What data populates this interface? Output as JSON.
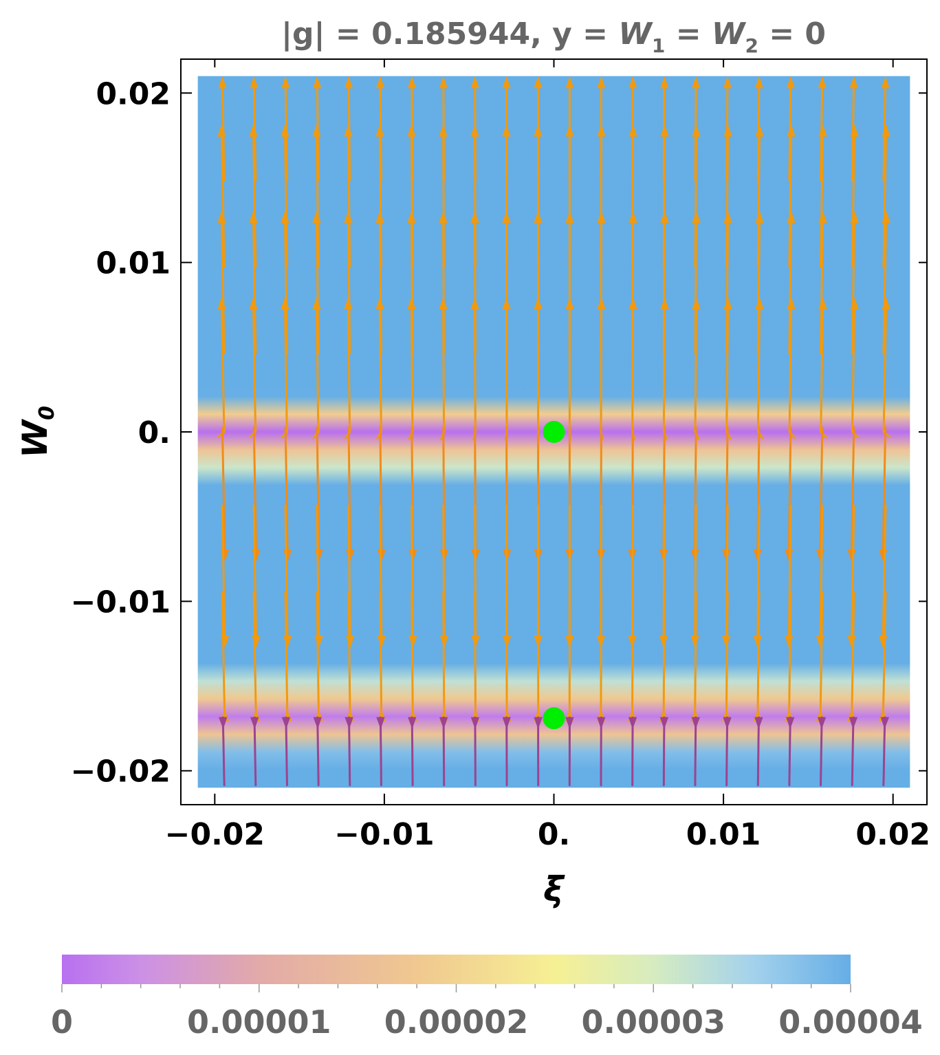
{
  "chart_data": {
    "type": "streamplot",
    "title": {
      "prefix": "|g| = 0.185944, y = ",
      "w1_letter": "W",
      "w1_sub": "1",
      "mid": " = ",
      "w2_letter": "W",
      "w2_sub": "2",
      "suffix": " = 0"
    },
    "xlabel": "ξ",
    "ylabel": {
      "letter": "W",
      "sub": "0"
    },
    "xlim": [
      -0.022,
      0.022
    ],
    "ylim": [
      -0.022,
      0.022
    ],
    "plot_range": {
      "x": [
        -0.021,
        0.021
      ],
      "y": [
        -0.021,
        0.021
      ]
    },
    "x_ticks": [
      {
        "value": -0.02,
        "label": "−0.02"
      },
      {
        "value": -0.01,
        "label": "−0.01"
      },
      {
        "value": 0,
        "label": "0."
      },
      {
        "value": 0.01,
        "label": "0.01"
      },
      {
        "value": 0.02,
        "label": "0.02"
      }
    ],
    "y_ticks": [
      {
        "value": 0.02,
        "label": "0.02"
      },
      {
        "value": 0.01,
        "label": "0.01"
      },
      {
        "value": 0,
        "label": "0."
      },
      {
        "value": -0.01,
        "label": "−0.01"
      },
      {
        "value": -0.02,
        "label": "−0.02"
      }
    ],
    "fixed_points": [
      {
        "xi": 0,
        "w0": 0,
        "color": "#00ee00"
      },
      {
        "xi": 0,
        "w0": -0.0169,
        "color": "#00ee00"
      }
    ],
    "flow": {
      "a": 0.08,
      "b": 0.0169,
      "k": 3e-06
    },
    "colorbar": {
      "range": [
        0,
        4e-05
      ],
      "ticks": [
        {
          "value": 0,
          "label": "0"
        },
        {
          "value": 1e-05,
          "label": "0.00001"
        },
        {
          "value": 2e-05,
          "label": "0.00002"
        },
        {
          "value": 3e-05,
          "label": "0.00003"
        },
        {
          "value": 4e-05,
          "label": "0.00004"
        }
      ],
      "stops": [
        {
          "value": 0,
          "color": "#b870f0"
        },
        {
          "value": 4e-06,
          "color": "#cc90e6"
        },
        {
          "value": 1e-05,
          "color": "#e2aaa8"
        },
        {
          "value": 1.8e-05,
          "color": "#f0c890"
        },
        {
          "value": 2.5e-05,
          "color": "#f6f094"
        },
        {
          "value": 3e-05,
          "color": "#d6ecc0"
        },
        {
          "value": 3.5e-05,
          "color": "#a4d2ec"
        },
        {
          "value": 4e-05,
          "color": "#66aee6"
        }
      ]
    },
    "stream_colors": [
      {
        "value": 0,
        "color": "#2a0ab0"
      },
      {
        "value": 6e-06,
        "color": "#5a1ab0"
      },
      {
        "value": 1.2e-05,
        "color": "#8a3aa0"
      },
      {
        "value": 2e-05,
        "color": "#d05a60"
      },
      {
        "value": 3e-05,
        "color": "#f08020"
      },
      {
        "value": 4e-05,
        "color": "#f09a10"
      }
    ]
  }
}
